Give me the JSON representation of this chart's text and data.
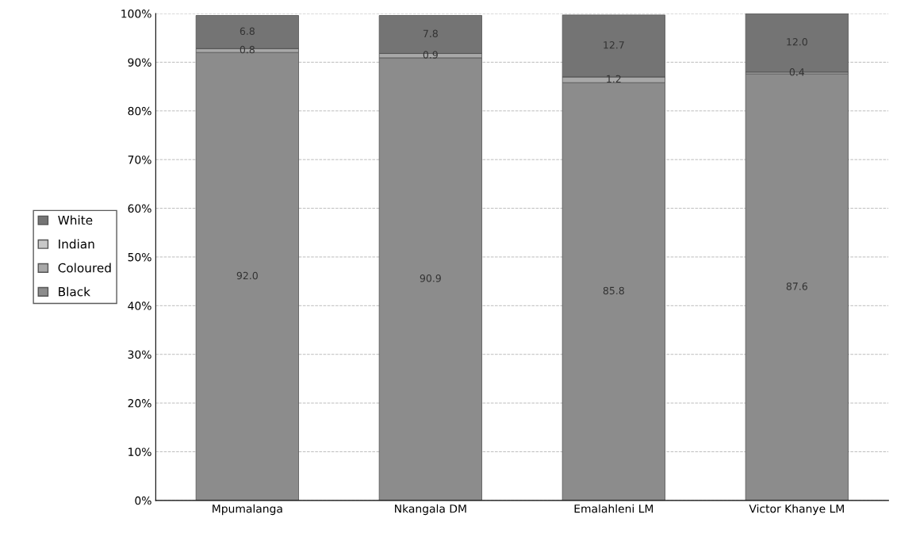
{
  "chart_data": {
    "type": "bar",
    "stacked": true,
    "categories": [
      "Mpumalanga",
      "Nkangala DM",
      "Emalahleni LM",
      "Victor Khanye LM"
    ],
    "series": [
      {
        "name": "Black",
        "color": "#8c8c8c",
        "values": [
          92.0,
          90.9,
          85.8,
          87.6
        ],
        "value_labels": [
          "92.0",
          "90.9",
          "85.8",
          "87.6"
        ]
      },
      {
        "name": "Coloured",
        "color": "#a8a8a8",
        "values": [
          0.8,
          0.9,
          1.2,
          0.4
        ],
        "value_labels": [
          "0.8",
          "0.9",
          "1.2",
          "0.4"
        ]
      },
      {
        "name": "Indian",
        "color": "#c8c8c8",
        "values": [
          null,
          null,
          null,
          null
        ],
        "value_labels": [
          null,
          null,
          null,
          null
        ]
      },
      {
        "name": "White",
        "color": "#747474",
        "values": [
          6.8,
          7.8,
          12.7,
          12.0
        ],
        "value_labels": [
          "6.8",
          "7.8",
          "12.7",
          "12.0"
        ]
      }
    ],
    "ylim": [
      0,
      100
    ],
    "yticks": [
      {
        "value": 0,
        "label": "0%"
      },
      {
        "value": 10,
        "label": "10%"
      },
      {
        "value": 20,
        "label": "20%"
      },
      {
        "value": 30,
        "label": "30%"
      },
      {
        "value": 40,
        "label": "40%"
      },
      {
        "value": 50,
        "label": "50%"
      },
      {
        "value": 60,
        "label": "60%"
      },
      {
        "value": 70,
        "label": "70%"
      },
      {
        "value": 80,
        "label": "80%"
      },
      {
        "value": 90,
        "label": "90%"
      },
      {
        "value": 100,
        "label": "100%"
      }
    ],
    "grid": "y",
    "legend": "left"
  }
}
